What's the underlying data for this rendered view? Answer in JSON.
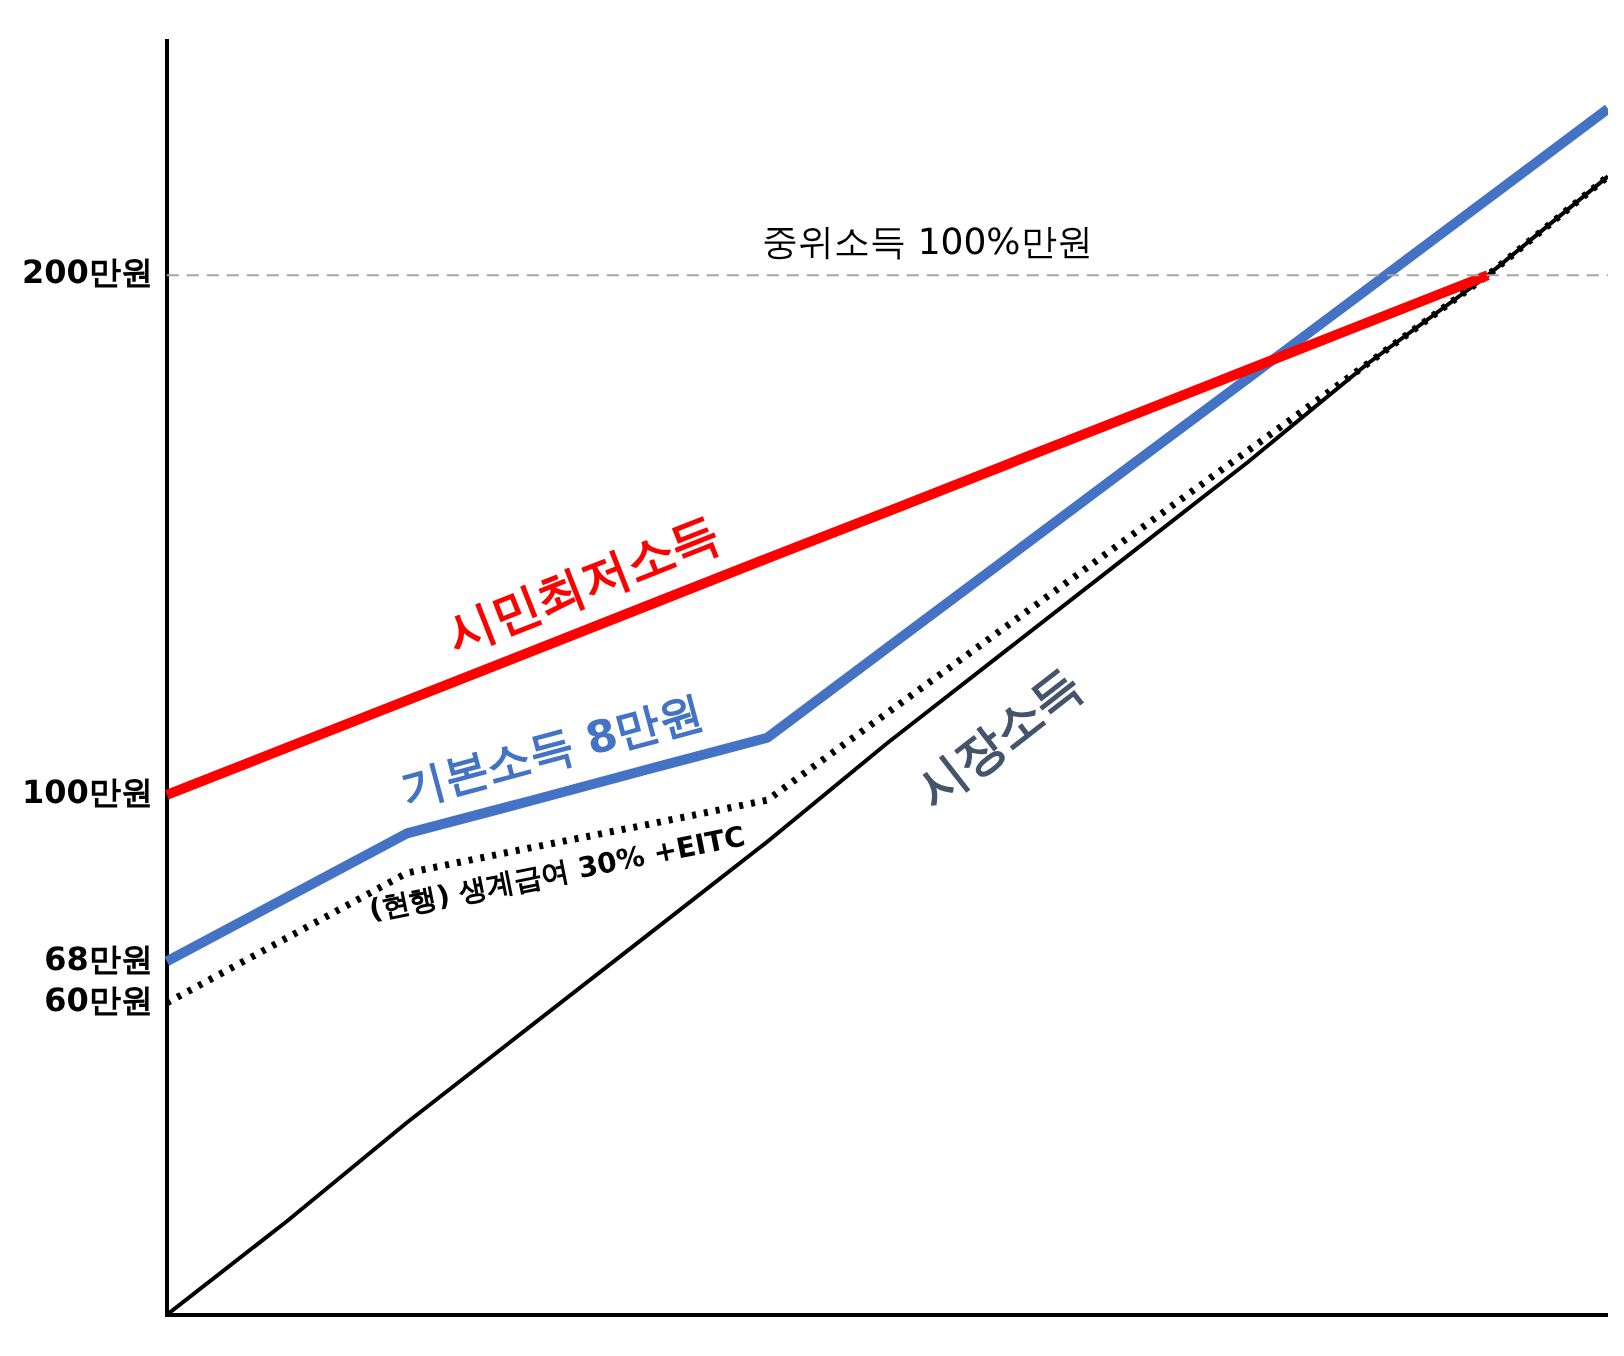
{
  "chart_data": {
    "type": "line",
    "categories": [
      null,
      null,
      null,
      null,
      null,
      null,
      null,
      null,
      null,
      null,
      null,
      null,
      null
    ],
    "ylim": [
      0,
      245
    ],
    "yticks": [
      {
        "value": 60,
        "label": "60만원"
      },
      {
        "value": 68,
        "label": "68만원"
      },
      {
        "value": 100,
        "label": "100만원"
      },
      {
        "value": 200,
        "label": "200만원"
      }
    ],
    "tick_labels": "y",
    "grid": false,
    "legend": false,
    "marker": "none",
    "ref_lines": [
      {
        "axis": "y",
        "value": 200,
        "label": "중위소득 100%만원",
        "color": "#a6a6a6",
        "line_style": "dashed"
      }
    ],
    "series": [
      {
        "name": "시민최저소득",
        "color": "#ff0000",
        "values": [
          100,
          109.1,
          118.2,
          127.3,
          136.4,
          145.5,
          154.5,
          163.6,
          172.7,
          181.8,
          190.9,
          200,
          null
        ],
        "line_style": "solid"
      },
      {
        "name": "기본소득 8만원",
        "color": "#4472c4",
        "values": [
          68,
          80.3,
          92.6,
          98.7,
          104.9,
          111,
          128.3,
          145.6,
          162.9,
          180.1,
          197.4,
          214.7,
          232
        ],
        "line_style": "solid"
      },
      {
        "name": "(현행) 생계급여 30% +EITC",
        "color": "#000000",
        "values": [
          60,
          72.5,
          85,
          89.7,
          94.3,
          99,
          115.8,
          132.6,
          149.4,
          166.2,
          183,
          200,
          219
        ],
        "line_style": "dotted"
      },
      {
        "name": "시장소득",
        "color": "#000000",
        "values": [
          0,
          18,
          37,
          55,
          73,
          91,
          110,
          128,
          146,
          164,
          183,
          200,
          219
        ],
        "line_style": "solid"
      }
    ]
  }
}
